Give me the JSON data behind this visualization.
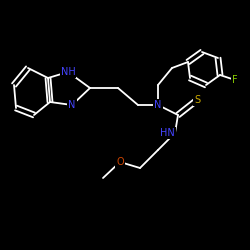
{
  "background": "#000000",
  "bond_color": "#ffffff",
  "atom_colors": {
    "N": "#4444ff",
    "S": "#ccaa00",
    "O": "#cc4400",
    "F": "#88cc00",
    "C": "#ffffff",
    "H": "#4444ff"
  }
}
